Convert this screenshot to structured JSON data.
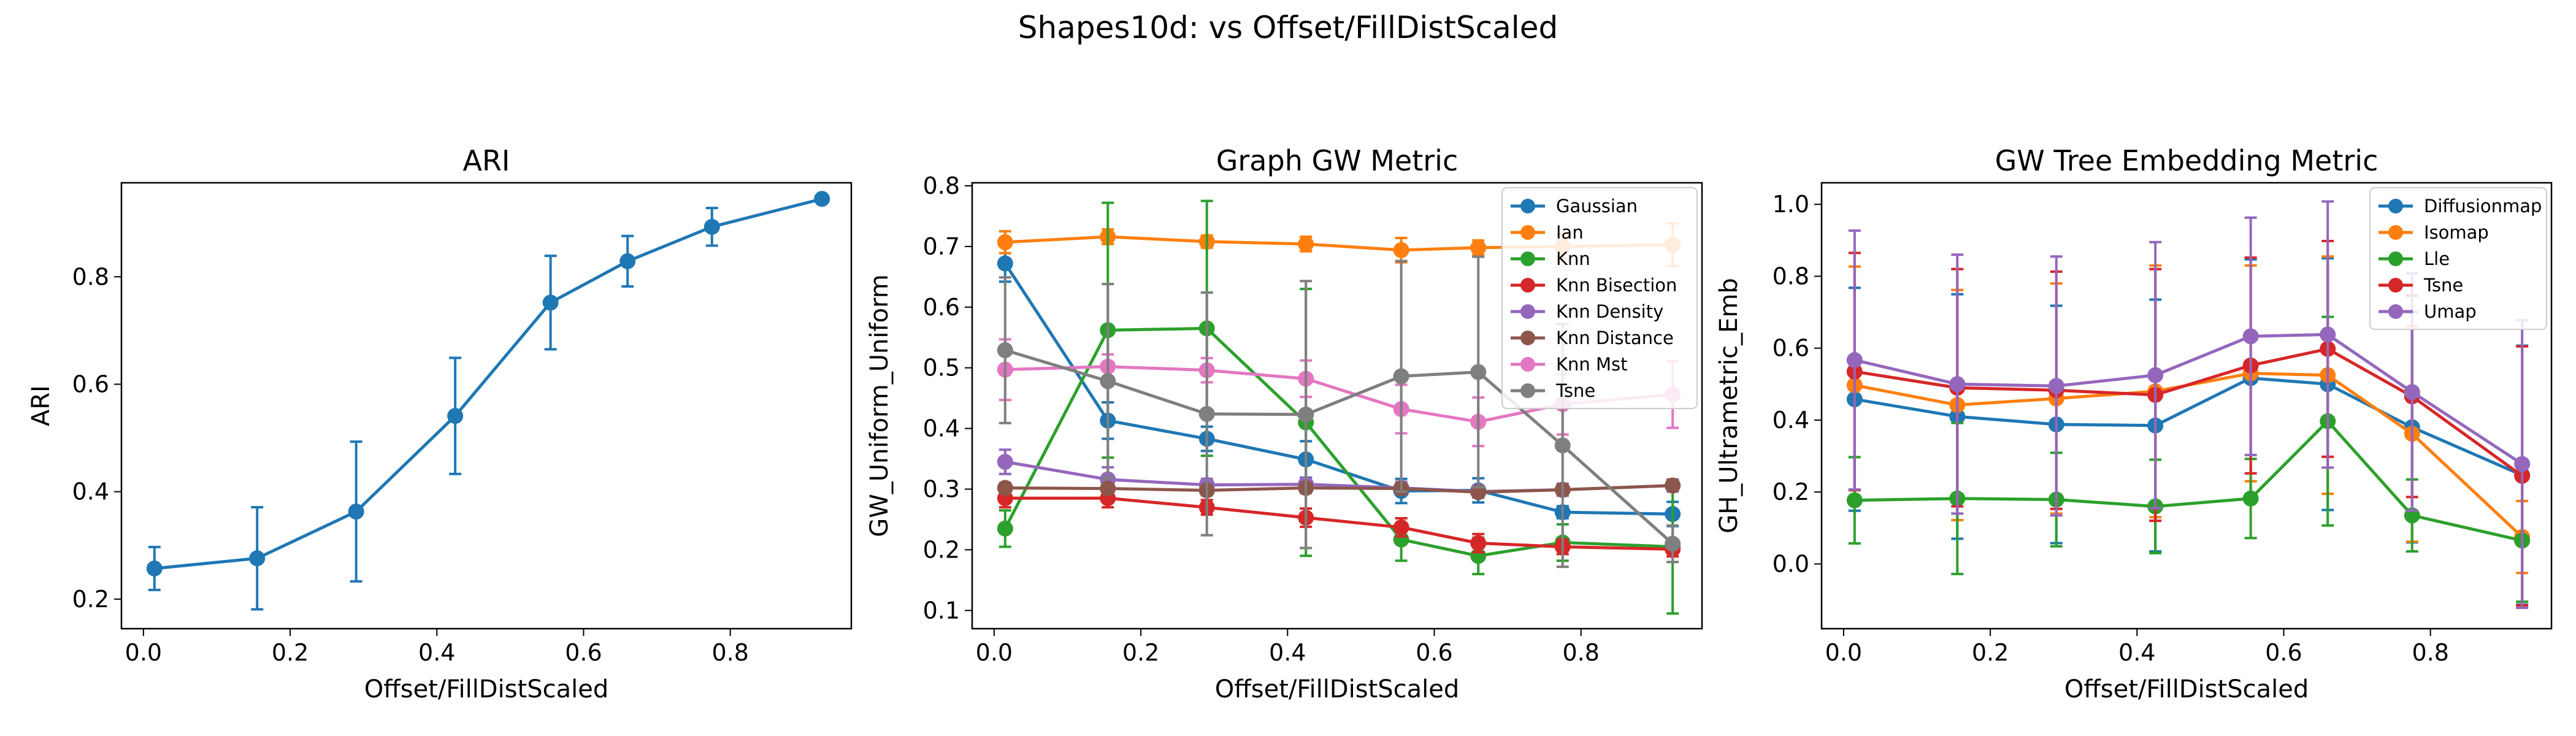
{
  "figure": {
    "suptitle": "Shapes10d: vs Offset/FillDistScaled"
  },
  "chart_data": [
    {
      "type": "line",
      "title": "ARI",
      "xlabel": "Offset/FillDistScaled",
      "ylabel": "ARI",
      "xlim": [
        -0.03,
        0.965
      ],
      "ylim": [
        0.145,
        0.975
      ],
      "xticks": [
        0.0,
        0.2,
        0.4,
        0.6,
        0.8
      ],
      "xtick_labels": [
        "0.0",
        "0.2",
        "0.4",
        "0.6",
        "0.8"
      ],
      "yticks": [
        0.2,
        0.4,
        0.6,
        0.8
      ],
      "ytick_labels": [
        "0.2",
        "0.4",
        "0.6",
        "0.8"
      ],
      "legend": null,
      "series": [
        {
          "name": "",
          "color": "#1f77b4",
          "x": [
            0.015,
            0.155,
            0.29,
            0.425,
            0.555,
            0.66,
            0.775,
            0.925
          ],
          "y": [
            0.257,
            0.276,
            0.363,
            0.541,
            0.752,
            0.829,
            0.893,
            0.945
          ],
          "err": [
            0.04,
            0.095,
            0.13,
            0.108,
            0.087,
            0.047,
            0.035,
            0.0
          ]
        }
      ]
    },
    {
      "type": "line",
      "title": "Graph GW Metric",
      "xlabel": "Offset/FillDistScaled",
      "ylabel": "GW_Uniform_Uniform",
      "xlim": [
        -0.03,
        0.965
      ],
      "ylim": [
        0.07,
        0.805
      ],
      "xticks": [
        0.0,
        0.2,
        0.4,
        0.6,
        0.8
      ],
      "xtick_labels": [
        "0.0",
        "0.2",
        "0.4",
        "0.6",
        "0.8"
      ],
      "yticks": [
        0.1,
        0.2,
        0.3,
        0.4,
        0.5,
        0.6,
        0.7,
        0.8
      ],
      "ytick_labels": [
        "0.1",
        "0.2",
        "0.3",
        "0.4",
        "0.5",
        "0.6",
        "0.7",
        "0.8"
      ],
      "legend": "top-right",
      "series": [
        {
          "name": "Gaussian",
          "color": "#1f77b4",
          "x": [
            0.015,
            0.155,
            0.29,
            0.425,
            0.555,
            0.66,
            0.775,
            0.925
          ],
          "y": [
            0.672,
            0.413,
            0.383,
            0.349,
            0.297,
            0.298,
            0.262,
            0.259
          ],
          "err": [
            0.03,
            0.03,
            0.02,
            0.03,
            0.02,
            0.02,
            0.01,
            0.02
          ]
        },
        {
          "name": "Ian",
          "color": "#ff7f0e",
          "x": [
            0.015,
            0.155,
            0.29,
            0.425,
            0.555,
            0.66,
            0.775,
            0.925
          ],
          "y": [
            0.707,
            0.716,
            0.708,
            0.704,
            0.694,
            0.698,
            0.7,
            0.703
          ],
          "err": [
            0.018,
            0.012,
            0.01,
            0.012,
            0.02,
            0.012,
            0.02,
            0.035
          ]
        },
        {
          "name": "Knn",
          "color": "#2ca02c",
          "x": [
            0.015,
            0.155,
            0.29,
            0.425,
            0.555,
            0.66,
            0.775,
            0.925
          ],
          "y": [
            0.235,
            0.562,
            0.565,
            0.41,
            0.217,
            0.19,
            0.212,
            0.205
          ],
          "err": [
            0.03,
            0.21,
            0.21,
            0.22,
            0.035,
            0.03,
            0.03,
            0.11
          ]
        },
        {
          "name": "Knn Bisection",
          "color": "#d62728",
          "x": [
            0.015,
            0.155,
            0.29,
            0.425,
            0.555,
            0.66,
            0.775,
            0.925
          ],
          "y": [
            0.285,
            0.285,
            0.27,
            0.253,
            0.237,
            0.211,
            0.205,
            0.201
          ],
          "err": [
            0.015,
            0.015,
            0.012,
            0.015,
            0.015,
            0.015,
            0.012,
            0.012
          ]
        },
        {
          "name": "Knn Density",
          "color": "#9467bd",
          "x": [
            0.015,
            0.155,
            0.29,
            0.425,
            0.555,
            0.66,
            0.775,
            0.925
          ],
          "y": [
            0.345,
            0.316,
            0.307,
            0.308,
            0.302,
            0.296,
            0.299,
            0.306
          ],
          "err": [
            0.02,
            0.02,
            0.01,
            0.01,
            0.01,
            0.01,
            0.01,
            0.01
          ]
        },
        {
          "name": "Knn Distance",
          "color": "#8c564b",
          "x": [
            0.015,
            0.155,
            0.29,
            0.425,
            0.555,
            0.66,
            0.775,
            0.925
          ],
          "y": [
            0.302,
            0.301,
            0.298,
            0.302,
            0.301,
            0.295,
            0.299,
            0.306
          ],
          "err": [
            0.008,
            0.008,
            0.008,
            0.008,
            0.008,
            0.008,
            0.008,
            0.008
          ]
        },
        {
          "name": "Knn Mst",
          "color": "#e377c2",
          "x": [
            0.015,
            0.155,
            0.29,
            0.425,
            0.555,
            0.66,
            0.775,
            0.925
          ],
          "y": [
            0.497,
            0.502,
            0.496,
            0.482,
            0.432,
            0.411,
            0.44,
            0.456
          ],
          "err": [
            0.05,
            0.02,
            0.02,
            0.03,
            0.04,
            0.04,
            0.05,
            0.055
          ]
        },
        {
          "name": "Tsne",
          "color": "#7f7f7f",
          "x": [
            0.015,
            0.155,
            0.29,
            0.425,
            0.555,
            0.66,
            0.775,
            0.925
          ],
          "y": [
            0.529,
            0.478,
            0.424,
            0.423,
            0.486,
            0.493,
            0.372,
            0.21
          ],
          "err": [
            0.12,
            0.16,
            0.2,
            0.22,
            0.19,
            0.19,
            0.2,
            0.03
          ]
        }
      ]
    },
    {
      "type": "line",
      "title": "GW Tree Embedding Metric",
      "xlabel": "Offset/FillDistScaled",
      "ylabel": "GH_Ultrametric_Emb",
      "xlim": [
        -0.03,
        0.965
      ],
      "ylim": [
        -0.18,
        1.06
      ],
      "xticks": [
        0.0,
        0.2,
        0.4,
        0.6,
        0.8
      ],
      "xtick_labels": [
        "0.0",
        "0.2",
        "0.4",
        "0.6",
        "0.8"
      ],
      "yticks": [
        0.0,
        0.2,
        0.4,
        0.6,
        0.8,
        1.0
      ],
      "ytick_labels": [
        "0.0",
        "0.2",
        "0.4",
        "0.6",
        "0.8",
        "1.0"
      ],
      "legend": "top-right",
      "series": [
        {
          "name": "Diffusionmap",
          "color": "#1f77b4",
          "x": [
            0.015,
            0.155,
            0.29,
            0.425,
            0.555,
            0.66,
            0.775,
            0.925
          ],
          "y": [
            0.458,
            0.41,
            0.388,
            0.385,
            0.517,
            0.5,
            0.38,
            0.247
          ],
          "err": [
            0.31,
            0.34,
            0.33,
            0.35,
            0.33,
            0.35,
            0.32,
            0.36
          ]
        },
        {
          "name": "Isomap",
          "color": "#ff7f0e",
          "x": [
            0.015,
            0.155,
            0.29,
            0.425,
            0.555,
            0.66,
            0.775,
            0.925
          ],
          "y": [
            0.497,
            0.442,
            0.46,
            0.48,
            0.53,
            0.525,
            0.362,
            0.075
          ],
          "err": [
            0.33,
            0.32,
            0.32,
            0.35,
            0.3,
            0.33,
            0.3,
            0.1
          ]
        },
        {
          "name": "Lle",
          "color": "#2ca02c",
          "x": [
            0.015,
            0.155,
            0.29,
            0.425,
            0.555,
            0.66,
            0.775,
            0.925
          ],
          "y": [
            0.177,
            0.182,
            0.179,
            0.16,
            0.182,
            0.397,
            0.135,
            0.065
          ],
          "err": [
            0.12,
            0.21,
            0.13,
            0.13,
            0.11,
            0.29,
            0.1,
            0.17
          ]
        },
        {
          "name": "Tsne",
          "color": "#d62728",
          "x": [
            0.015,
            0.155,
            0.29,
            0.425,
            0.555,
            0.66,
            0.775,
            0.925
          ],
          "y": [
            0.535,
            0.49,
            0.483,
            0.47,
            0.552,
            0.598,
            0.466,
            0.245
          ],
          "err": [
            0.33,
            0.33,
            0.33,
            0.35,
            0.3,
            0.3,
            0.28,
            0.36
          ]
        },
        {
          "name": "Umap",
          "color": "#9467bd",
          "x": [
            0.015,
            0.155,
            0.29,
            0.425,
            0.555,
            0.66,
            0.775,
            0.925
          ],
          "y": [
            0.567,
            0.5,
            0.495,
            0.525,
            0.633,
            0.638,
            0.478,
            0.278
          ],
          "err": [
            0.36,
            0.36,
            0.36,
            0.37,
            0.33,
            0.37,
            0.33,
            0.4
          ]
        }
      ]
    }
  ]
}
